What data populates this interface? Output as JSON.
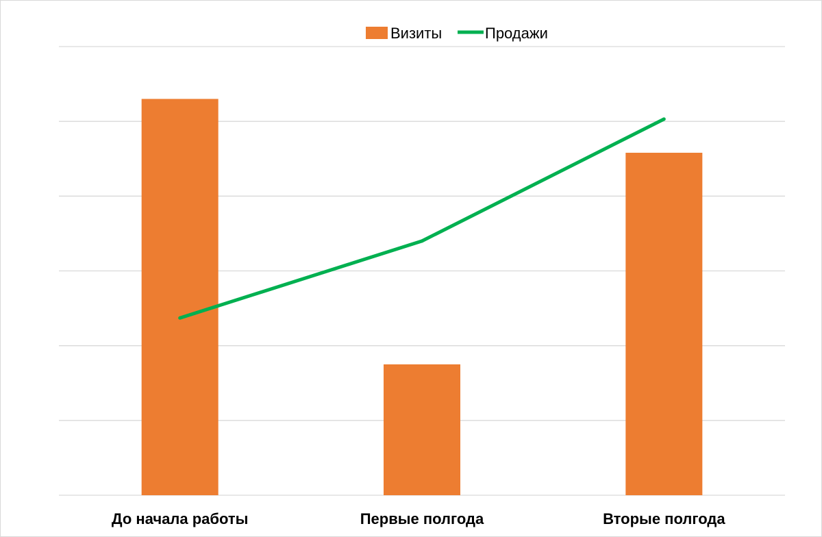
{
  "chart_data": {
    "type": "bar",
    "title": "",
    "xlabel": "",
    "ylabel": "",
    "categories": [
      "До начала работы",
      "Первые полгода",
      "Вторые полгода"
    ],
    "ylim": [
      0,
      6
    ],
    "grid": true,
    "legend_position": "top",
    "series": [
      {
        "name": "Визиты",
        "kind": "bar",
        "color": "#ED7D31",
        "values": [
          5.3,
          1.75,
          4.58
        ]
      },
      {
        "name": "Продажи",
        "kind": "line",
        "color": "#00B050",
        "values": [
          2.37,
          3.4,
          5.03
        ]
      }
    ]
  }
}
